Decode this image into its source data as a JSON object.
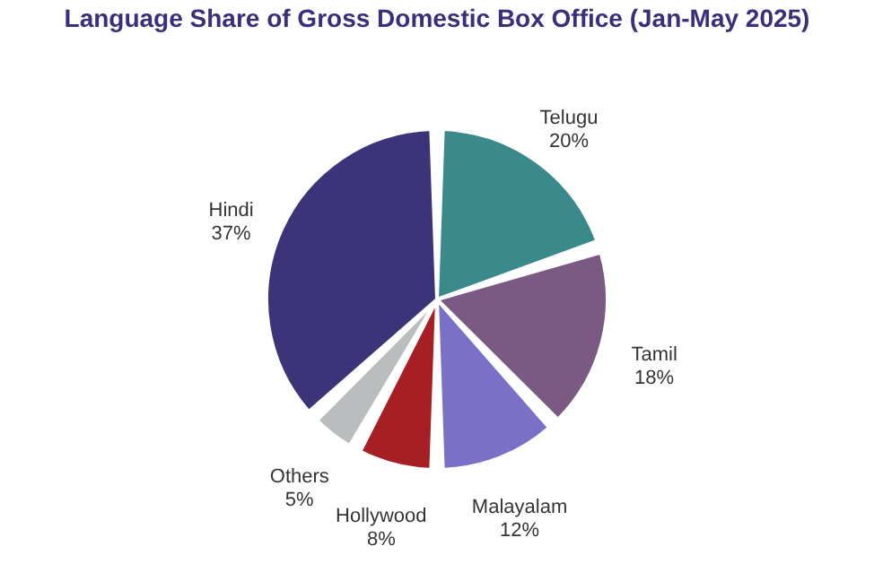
{
  "chart_data": {
    "type": "pie",
    "title": "Language Share of Gross Domestic Box Office (Jan-May 2025)",
    "categories": [
      "Telugu",
      "Tamil",
      "Malayalam",
      "Hollywood",
      "Others",
      "Hindi"
    ],
    "values": [
      20,
      18,
      12,
      8,
      5,
      37
    ],
    "value_labels": [
      "20%",
      "18%",
      "12%",
      "8%",
      "5%",
      "37%"
    ],
    "colors": [
      "#3a8a8c",
      "#7a5a82",
      "#7b70c8",
      "#a51f24",
      "#b9bdbd",
      "#3b3478"
    ],
    "legend": false
  }
}
